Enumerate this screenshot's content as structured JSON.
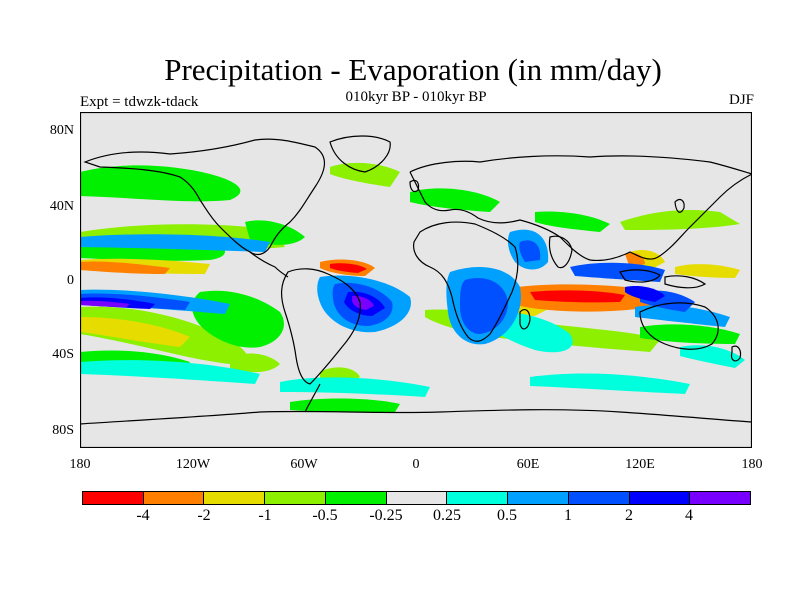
{
  "title": "Precipitation - Evaporation (in mm/day)",
  "subtitle": "010kyr BP - 010kyr BP",
  "left_label": "Expt = tdwzk-tdack",
  "right_label": "DJF",
  "map": {
    "lat_ticks": [
      "80N",
      "40N",
      "0",
      "40S",
      "80S"
    ],
    "lon_ticks": [
      "180",
      "120W",
      "60W",
      "0",
      "60E",
      "120E",
      "180"
    ],
    "background_color": "#e6e6e6"
  },
  "colorbar": {
    "colors": [
      "#ff0000",
      "#ff8000",
      "#e6dc00",
      "#8cf000",
      "#00f000",
      "#e6e6e6",
      "#00ffdc",
      "#00a0ff",
      "#0050ff",
      "#0000ff",
      "#7800ff"
    ],
    "labels": [
      "-4",
      "-2",
      "-1",
      "-0.5",
      "-0.25",
      "0.25",
      "0.5",
      "1",
      "2",
      "4"
    ]
  }
}
